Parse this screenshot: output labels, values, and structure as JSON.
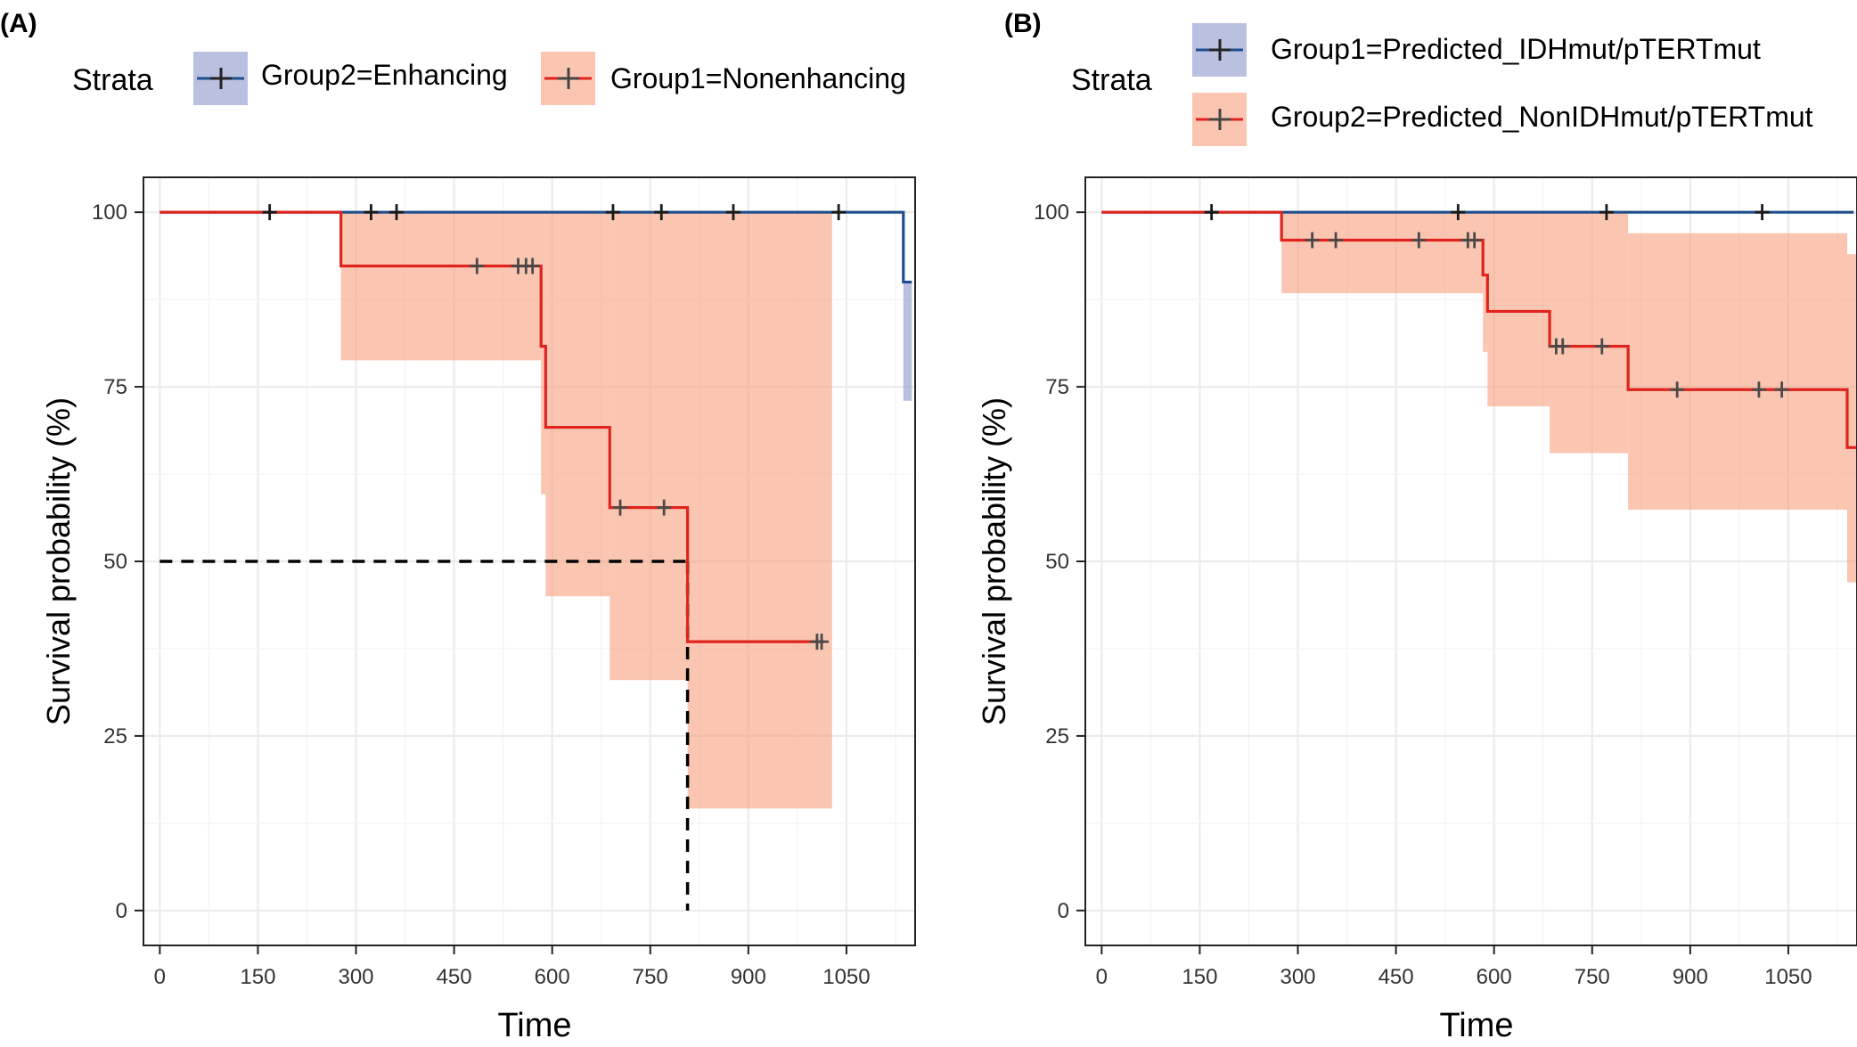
{
  "chart_data": [
    {
      "type": "line",
      "panel_label": "(A)",
      "legend_title": "Strata",
      "xlabel": "Time",
      "ylabel": "Survival probability (%)",
      "x_ticks": [
        "0",
        "150",
        "300",
        "450",
        "600",
        "750",
        "900",
        "1050"
      ],
      "y_ticks": [
        "0",
        "25",
        "50",
        "75",
        "100"
      ],
      "xlim": [
        -25,
        1155
      ],
      "ylim": [
        -5,
        105
      ],
      "series": [
        {
          "name": "Group2=Enhancing",
          "color": "#1F4E8C",
          "fill_color": "#8C96CC",
          "curve": [
            [
              0,
              100
            ],
            [
              1137,
              100
            ],
            [
              1137,
              90
            ],
            [
              1150,
              90
            ]
          ],
          "ci": [
            [
              1137,
              73,
              90
            ]
          ],
          "censor_x": [
            168,
            323,
            362,
            693,
            767,
            877,
            1038
          ]
        },
        {
          "name": "Group1=Nonenhancing",
          "color": "#E0241D",
          "fill_color": "#F7A07F",
          "curve": [
            [
              0,
              100
            ],
            [
              277,
              100
            ],
            [
              277,
              92.3
            ],
            [
              583,
              92.3
            ],
            [
              583,
              80.8
            ],
            [
              590,
              80.8
            ],
            [
              590,
              69.2
            ],
            [
              688,
              69.2
            ],
            [
              688,
              57.7
            ],
            [
              807,
              57.7
            ],
            [
              807,
              38.5
            ],
            [
              1015,
              38.5
            ]
          ],
          "ci": [
            [
              277,
              100,
              78.8
            ],
            [
              583,
              100,
              59.6
            ],
            [
              590,
              100,
              45
            ],
            [
              688,
              100,
              33
            ],
            [
              807,
              100,
              14.6
            ],
            [
              1015,
              100,
              14.6
            ]
          ],
          "censor_x": [
            485,
            548,
            560,
            570,
            704,
            771,
            1005,
            1012
          ]
        }
      ],
      "median_line": {
        "x": 807,
        "y": 50
      }
    },
    {
      "type": "line",
      "panel_label": "(B)",
      "legend_title": "Strata",
      "xlabel": "Time",
      "ylabel": "Survival probability (%)",
      "x_ticks": [
        "0",
        "150",
        "300",
        "450",
        "600",
        "750",
        "900",
        "1050"
      ],
      "y_ticks": [
        "0",
        "25",
        "50",
        "75",
        "100"
      ],
      "xlim": [
        -25,
        1155
      ],
      "ylim": [
        -5,
        105
      ],
      "series": [
        {
          "name": "Group1=Predicted_IDHmut/pTERTmut",
          "color": "#1F4E8C",
          "fill_color": "#8C96CC",
          "curve": [
            [
              0,
              100
            ],
            [
              1150,
              100
            ]
          ],
          "ci": [],
          "censor_x": [
            168,
            545,
            772,
            1010
          ]
        },
        {
          "name": "Group2=Predicted_NonIDHmut/pTERTmut",
          "color": "#E0241D",
          "fill_color": "#F7A07F",
          "curve": [
            [
              0,
              100
            ],
            [
              275,
              100
            ],
            [
              275,
              96
            ],
            [
              583,
              96
            ],
            [
              583,
              91
            ],
            [
              590,
              91
            ],
            [
              590,
              85.8
            ],
            [
              685,
              85.8
            ],
            [
              685,
              80.8
            ],
            [
              805,
              80.8
            ],
            [
              805,
              74.6
            ],
            [
              1140,
              74.6
            ],
            [
              1140,
              66.3
            ],
            [
              1155,
              66.3
            ]
          ],
          "ci": [
            [
              275,
              100,
              88.4
            ],
            [
              583,
              100,
              80
            ],
            [
              590,
              100,
              72.2
            ],
            [
              685,
              100,
              65.5
            ],
            [
              805,
              97,
              57.4
            ],
            [
              1140,
              94,
              47
            ],
            [
              1155,
              94,
              47
            ]
          ],
          "censor_x": [
            322,
            358,
            485,
            560,
            570,
            695,
            705,
            765,
            880,
            1005,
            1040
          ]
        }
      ]
    }
  ]
}
